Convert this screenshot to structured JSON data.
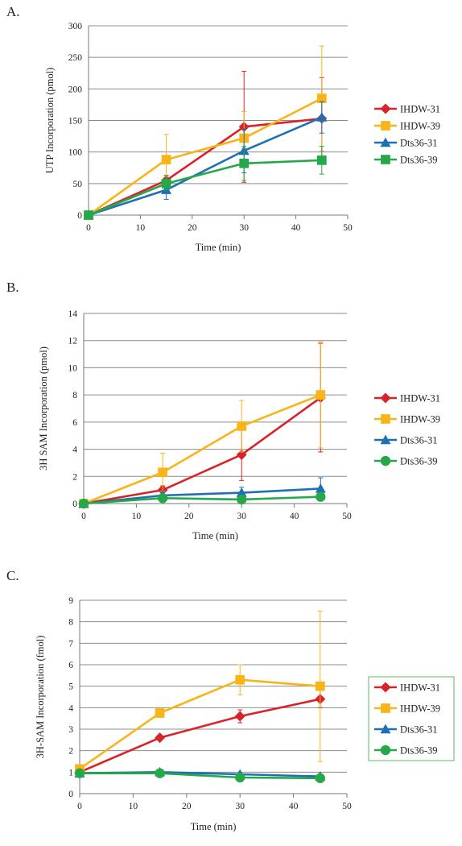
{
  "chart_data": [
    {
      "panel_label": "A.",
      "type": "line",
      "xlabel": "Time (min)",
      "ylabel": "UTP Incorporation (pmol)",
      "xlim": [
        0,
        50
      ],
      "ylim": [
        0,
        300
      ],
      "xticks": [
        0,
        10,
        20,
        30,
        40,
        50
      ],
      "yticks": [
        0,
        50,
        100,
        150,
        200,
        250,
        300
      ],
      "grid": "horizontal",
      "legend": "right",
      "legend_boxed": false,
      "x": [
        0,
        15,
        30,
        45
      ],
      "series": [
        {
          "name": "IHDW-31",
          "color": "#d9232a",
          "marker": "diamond",
          "values": [
            0,
            55,
            140,
            153
          ],
          "err": [
            0,
            8,
            88,
            65
          ]
        },
        {
          "name": "IHDW-39",
          "color": "#f8b418",
          "marker": "square",
          "values": [
            0,
            88,
            122,
            185
          ],
          "err": [
            0,
            40,
            42,
            83
          ]
        },
        {
          "name": "Dts36-31",
          "color": "#1f6fb3",
          "marker": "triangle",
          "values": [
            0,
            40,
            102,
            155
          ],
          "err": [
            0,
            15,
            35,
            25
          ]
        },
        {
          "name": "Dts36-39",
          "color": "#24a84a",
          "marker": "square",
          "values": [
            0,
            50,
            82,
            87
          ],
          "err": [
            0,
            10,
            27,
            22
          ]
        }
      ]
    },
    {
      "panel_label": "B.",
      "type": "line",
      "xlabel": "Time (min)",
      "ylabel": "3H SAM Incorporation (pmol)",
      "xlim": [
        0,
        50
      ],
      "ylim": [
        0,
        14
      ],
      "xticks": [
        0,
        10,
        20,
        30,
        40,
        50
      ],
      "yticks": [
        0,
        2,
        4,
        6,
        8,
        10,
        12,
        14
      ],
      "grid": "horizontal",
      "legend": "right",
      "legend_boxed": false,
      "x": [
        0,
        15,
        30,
        45
      ],
      "series": [
        {
          "name": "IHDW-31",
          "color": "#d9232a",
          "marker": "diamond",
          "values": [
            0,
            1.0,
            3.6,
            7.8
          ],
          "err": [
            0,
            0.3,
            1.9,
            4.0
          ]
        },
        {
          "name": "IHDW-39",
          "color": "#f8b418",
          "marker": "square",
          "values": [
            0,
            2.3,
            5.7,
            8.0
          ],
          "err": [
            0,
            1.4,
            1.9,
            3.9
          ]
        },
        {
          "name": "Dts36-31",
          "color": "#1f6fb3",
          "marker": "triangle",
          "values": [
            0,
            0.6,
            0.8,
            1.1
          ],
          "err": [
            0,
            0.2,
            0.4,
            0.8
          ]
        },
        {
          "name": "Dts36-39",
          "color": "#24a84a",
          "marker": "circle",
          "values": [
            0,
            0.4,
            0.3,
            0.5
          ],
          "err": [
            0,
            0.1,
            0.2,
            0.2
          ]
        }
      ]
    },
    {
      "panel_label": "C.",
      "type": "line",
      "xlabel": "Time (min)",
      "ylabel": "3H-SAM Incorporation (fmol)",
      "xlim": [
        0,
        50
      ],
      "ylim": [
        0,
        9
      ],
      "xticks": [
        0,
        10,
        20,
        30,
        40,
        50
      ],
      "yticks": [
        0,
        1,
        2,
        3,
        4,
        5,
        6,
        7,
        8,
        9
      ],
      "grid": "horizontal",
      "legend": "right",
      "legend_boxed": true,
      "legend_border_color": "#5cb85c",
      "x": [
        0,
        15,
        30,
        45
      ],
      "series": [
        {
          "name": "IHDW-31",
          "color": "#d9232a",
          "marker": "diamond",
          "values": [
            1.0,
            2.6,
            3.6,
            4.4
          ],
          "err": [
            0,
            0.1,
            0.3,
            0.4
          ]
        },
        {
          "name": "IHDW-39",
          "color": "#f8b418",
          "marker": "square",
          "values": [
            1.15,
            3.75,
            5.3,
            5.0
          ],
          "err": [
            0,
            0.1,
            0.7,
            3.5
          ]
        },
        {
          "name": "Dts36-31",
          "color": "#1f6fb3",
          "marker": "triangle",
          "values": [
            0.95,
            1.0,
            0.9,
            0.8
          ],
          "err": [
            0,
            0.05,
            0.05,
            0.05
          ]
        },
        {
          "name": "Dts36-39",
          "color": "#24a84a",
          "marker": "circle",
          "values": [
            0.95,
            0.95,
            0.75,
            0.72
          ],
          "err": [
            0,
            0.05,
            0.05,
            0.05
          ]
        }
      ]
    }
  ]
}
